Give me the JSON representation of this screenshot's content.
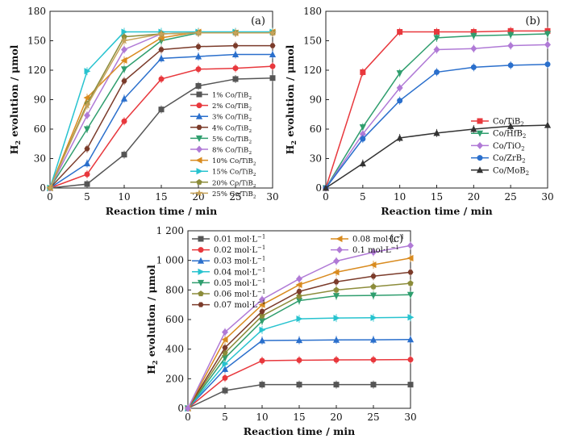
{
  "chart_data": [
    {
      "panel_label": "(a)",
      "type": "line",
      "xlabel": "Reaction time / min",
      "ylabel_main": "H",
      "ylabel_sub": "2",
      "ylabel_rest": " evolution / μmol",
      "xlim": [
        0,
        30
      ],
      "ylim": [
        0,
        180
      ],
      "xticks": [
        "0",
        "5",
        "10",
        "15",
        "20",
        "25",
        "30"
      ],
      "yticks": [
        "0",
        "30",
        "60",
        "90",
        "120",
        "150",
        "180"
      ],
      "legend_position": "lower-right",
      "x": [
        0,
        5,
        10,
        15,
        20,
        25,
        30
      ],
      "series": [
        {
          "name": "1% Co/TiB",
          "name_sub": "2",
          "color": "#555555",
          "marker": "square",
          "values": [
            0,
            4,
            34,
            80,
            104,
            111,
            112
          ]
        },
        {
          "name": "2% Co/TiB",
          "name_sub": "2",
          "color": "#e8383d",
          "marker": "circle",
          "values": [
            0,
            14,
            68,
            111,
            121,
            122,
            124
          ]
        },
        {
          "name": "3% Co/TiB",
          "name_sub": "2",
          "color": "#2a6fcc",
          "marker": "triangle",
          "values": [
            0,
            25,
            91,
            132,
            134,
            136,
            136
          ]
        },
        {
          "name": "4% Co/TiB",
          "name_sub": "2",
          "color": "#7b3b2a",
          "marker": "hexagon",
          "values": [
            0,
            40,
            109,
            141,
            144,
            145,
            145
          ]
        },
        {
          "name": "5% Co/TiB",
          "name_sub": "2",
          "color": "#2f9e6e",
          "marker": "triangle-down",
          "values": [
            0,
            60,
            121,
            150,
            158,
            158,
            158
          ]
        },
        {
          "name": "8% Co/TiB",
          "name_sub": "2",
          "color": "#b07ad6",
          "marker": "diamond",
          "values": [
            0,
            74,
            141,
            157,
            158,
            158,
            158
          ]
        },
        {
          "name": "10% Co/TiB",
          "name_sub": "2",
          "color": "#d98b1f",
          "marker": "triangle-left",
          "values": [
            0,
            92,
            130,
            153,
            159,
            158,
            159
          ]
        },
        {
          "name": "15% Co/TiB",
          "name_sub": "2",
          "color": "#27c3cf",
          "marker": "triangle-right",
          "values": [
            0,
            119,
            159,
            159,
            159,
            159,
            159
          ]
        },
        {
          "name": "20% Co/TiB",
          "name_sub": "2",
          "color": "#8c8c3a",
          "marker": "pentagon",
          "values": [
            0,
            86,
            154,
            157,
            158,
            158,
            158
          ]
        },
        {
          "name": "25% Co/TiB",
          "name_sub": "2",
          "color": "#c7a35a",
          "marker": "star",
          "values": [
            0,
            84,
            150,
            157,
            158,
            158,
            158
          ]
        }
      ]
    },
    {
      "panel_label": "(b)",
      "type": "line",
      "xlabel": "Reaction time / min",
      "ylabel_main": "H",
      "ylabel_sub": "2",
      "ylabel_rest": " evolution / μmol",
      "xlim": [
        0,
        30
      ],
      "ylim": [
        0,
        180
      ],
      "xticks": [
        "0",
        "5",
        "10",
        "15",
        "20",
        "25",
        "30"
      ],
      "yticks": [
        "0",
        "30",
        "60",
        "90",
        "120",
        "150",
        "180"
      ],
      "legend_position": "lower-right",
      "x": [
        0,
        5,
        10,
        15,
        20,
        25,
        30
      ],
      "series": [
        {
          "name": "Co/TiB",
          "name_sub": "2",
          "color": "#e8383d",
          "marker": "square",
          "values": [
            0,
            118,
            159,
            159,
            159,
            160,
            160
          ]
        },
        {
          "name": "Co/HfB",
          "name_sub": "2",
          "color": "#2f9e6e",
          "marker": "triangle-down",
          "values": [
            0,
            62,
            117,
            153,
            155,
            156,
            157
          ]
        },
        {
          "name": "Co/TiO",
          "name_sub": "2",
          "color": "#b07ad6",
          "marker": "diamond",
          "values": [
            0,
            55,
            102,
            141,
            142,
            145,
            146
          ]
        },
        {
          "name": "Co/ZrB",
          "name_sub": "2",
          "color": "#2a6fcc",
          "marker": "circle",
          "values": [
            0,
            50,
            89,
            118,
            123,
            125,
            126
          ]
        },
        {
          "name": "Co/MoB",
          "name_sub": "2",
          "color": "#333333",
          "marker": "triangle",
          "values": [
            0,
            25,
            51,
            56,
            60,
            63,
            64
          ]
        }
      ]
    },
    {
      "panel_label": "(c)",
      "type": "line",
      "xlabel": "Reaction time / min",
      "ylabel_main": "H",
      "ylabel_sub": "2",
      "ylabel_rest": " evolution / μmol",
      "xlim": [
        0,
        30
      ],
      "ylim": [
        0,
        1200
      ],
      "xticks": [
        "0",
        "5",
        "10",
        "15",
        "20",
        "25",
        "30"
      ],
      "yticks": [
        "0",
        "200",
        "400",
        "600",
        "800",
        "1 000",
        "1 200"
      ],
      "legend_position": "top-left",
      "x": [
        0,
        5,
        10,
        15,
        20,
        25,
        30
      ],
      "series": [
        {
          "name": "0.01 mol·L",
          "name_sup": "−1",
          "color": "#555555",
          "marker": "square",
          "values": [
            0,
            120,
            160,
            160,
            160,
            160,
            160
          ]
        },
        {
          "name": "0.02 mol·L",
          "name_sup": "−1",
          "color": "#e8383d",
          "marker": "circle",
          "values": [
            0,
            205,
            322,
            325,
            327,
            328,
            329
          ]
        },
        {
          "name": "0.03 mol·L",
          "name_sup": "−1",
          "color": "#2a6fcc",
          "marker": "triangle",
          "values": [
            0,
            265,
            458,
            460,
            462,
            463,
            465
          ]
        },
        {
          "name": "0.04 mol·L",
          "name_sup": "−1",
          "color": "#27c3cf",
          "marker": "triangle-right",
          "values": [
            0,
            300,
            530,
            605,
            610,
            612,
            615
          ]
        },
        {
          "name": "0.05 mol·L",
          "name_sup": "−1",
          "color": "#2f9e6e",
          "marker": "triangle-down",
          "values": [
            0,
            340,
            590,
            728,
            760,
            763,
            768
          ]
        },
        {
          "name": "0.06 mol·L",
          "name_sup": "−1",
          "color": "#8c8c3a",
          "marker": "pentagon",
          "values": [
            0,
            375,
            625,
            758,
            800,
            822,
            845
          ]
        },
        {
          "name": "0.07 mol·L",
          "name_sup": "−1",
          "color": "#7b3b2a",
          "marker": "hexagon",
          "values": [
            0,
            410,
            655,
            790,
            855,
            893,
            920
          ]
        },
        {
          "name": "0.08 mol·L",
          "name_sup": "−1",
          "color": "#d98b1f",
          "marker": "triangle-left",
          "values": [
            0,
            465,
            700,
            835,
            920,
            970,
            1015
          ]
        },
        {
          "name": "0.1 mol·L",
          "name_sup": "−1",
          "color": "#b07ad6",
          "marker": "diamond",
          "values": [
            0,
            515,
            735,
            875,
            995,
            1055,
            1100
          ]
        }
      ]
    }
  ]
}
